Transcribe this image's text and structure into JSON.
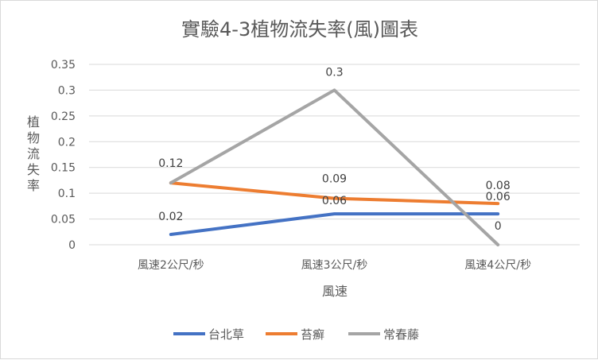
{
  "chart_data": {
    "type": "line",
    "title": "實驗4-3植物流失率(風)圖表",
    "xlabel": "風速",
    "ylabel": "植物流失率",
    "categories": [
      "風速2公尺/秒",
      "風速3公尺/秒",
      "風速4公尺/秒"
    ],
    "ylim": [
      0,
      0.35
    ],
    "yticks": [
      "0",
      "0.05",
      "0.1",
      "0.15",
      "0.2",
      "0.25",
      "0.3",
      "0.35"
    ],
    "grid": "horizontal",
    "legend": "bottom",
    "series": [
      {
        "name": "台北草",
        "color": "#4472C4",
        "values": [
          0.02,
          0.06,
          0.06
        ],
        "labels": [
          "0.02",
          "0.06",
          ""
        ]
      },
      {
        "name": "苔癬",
        "color": "#ED7D31",
        "values": [
          0.12,
          0.09,
          0.08
        ],
        "labels": [
          "",
          "0.09",
          "0.08"
        ]
      },
      {
        "name": "常春藤",
        "color": "#A5A5A5",
        "values": [
          0.12,
          0.3,
          0
        ],
        "labels": [
          "0.12",
          "0.3",
          "0"
        ]
      }
    ],
    "extra_labels": [
      "0.06"
    ]
  }
}
